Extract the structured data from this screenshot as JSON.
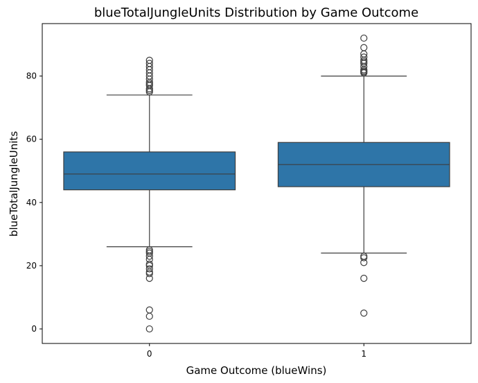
{
  "chart_data": {
    "type": "box",
    "title": "blueTotalJungleUnits Distribution by Game Outcome",
    "xlabel": "Game Outcome (blueWins)",
    "ylabel": "blueTotalJungleUnits",
    "categories": [
      "0",
      "1"
    ],
    "ylim": [
      -4.6,
      96.6
    ],
    "yticks": [
      0,
      20,
      40,
      60,
      80
    ],
    "grid": false,
    "box_color": "#2e75a8",
    "line_color": "#3d3d3d",
    "boxes": [
      {
        "category": "0",
        "q1": 44,
        "median": 49,
        "q3": 56,
        "whisker_low": 26,
        "whisker_high": 74,
        "outliers": [
          75,
          75.5,
          76,
          77,
          77.5,
          78,
          79,
          80,
          81,
          82,
          83,
          84,
          85,
          25,
          24.5,
          24,
          23,
          22,
          20.5,
          20,
          19,
          18,
          17.5,
          16,
          6,
          4,
          0
        ]
      },
      {
        "category": "1",
        "q1": 45,
        "median": 52,
        "q3": 59,
        "whisker_low": 24,
        "whisker_high": 80,
        "outliers": [
          81,
          81.3,
          81.6,
          82,
          83,
          84,
          84.5,
          85,
          86,
          87,
          89,
          92,
          23,
          22.5,
          21,
          16,
          5
        ]
      }
    ]
  }
}
